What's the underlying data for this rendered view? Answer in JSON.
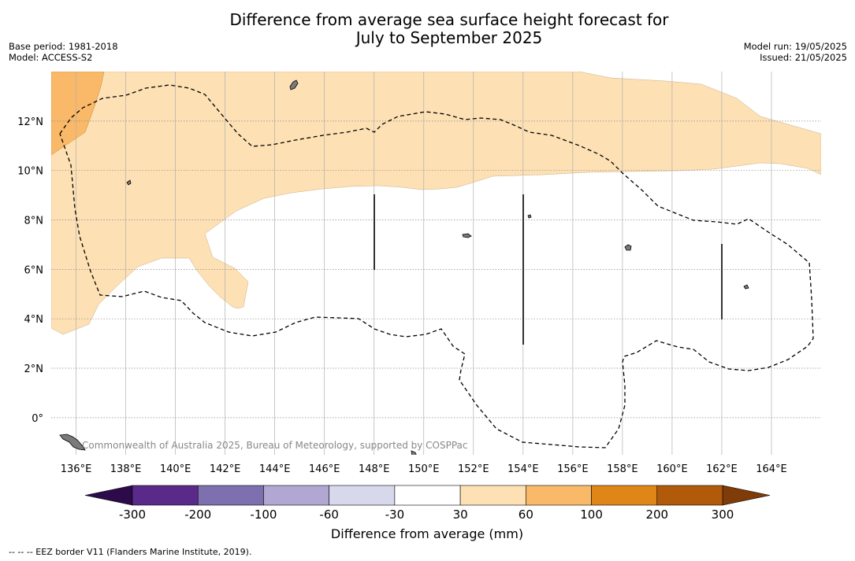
{
  "title_line1": "Difference from average sea surface height forecast for",
  "title_line2": "July to September 2025",
  "base_period": "Base period: 1981-2018",
  "model": "Model: ACCESS-S2",
  "model_run": "Model run: 19/05/2025",
  "issued": "Issued: 21/05/2025",
  "copyright": "Commonwealth of Australia 2025, Bureau of Meteorology, supported by COSPPac",
  "footnote": "-- -- -- EEZ border V11 (Flanders Marine Institute, 2019).",
  "map": {
    "lon_range": [
      135,
      166
    ],
    "lat_range": [
      -1.5,
      14
    ],
    "lon_ticks": [
      "136°E",
      "138°E",
      "140°E",
      "142°E",
      "144°E",
      "146°E",
      "148°E",
      "150°E",
      "152°E",
      "154°E",
      "156°E",
      "158°E",
      "160°E",
      "162°E",
      "164°E"
    ],
    "lat_ticks": [
      "0°",
      "2°N",
      "4°N",
      "6°N",
      "8°N",
      "10°N",
      "12°N"
    ],
    "grid": true,
    "fill_colors": {
      "light_orange": "#fde0b4",
      "orange": "#f9b968"
    }
  },
  "colorbar": {
    "title": "Difference from average (mm)",
    "labels": [
      "-300",
      "-200",
      "-100",
      "-60",
      "-30",
      "30",
      "60",
      "100",
      "200",
      "300"
    ],
    "colors": [
      "#5a2a8a",
      "#7e70ae",
      "#b0a8d3",
      "#d8d8ec",
      "#ffffff",
      "#fde0b4",
      "#f9b968",
      "#e08518",
      "#b15a0a"
    ],
    "extend_low_color": "#2d0b4b",
    "extend_high_color": "#7f3b08"
  }
}
